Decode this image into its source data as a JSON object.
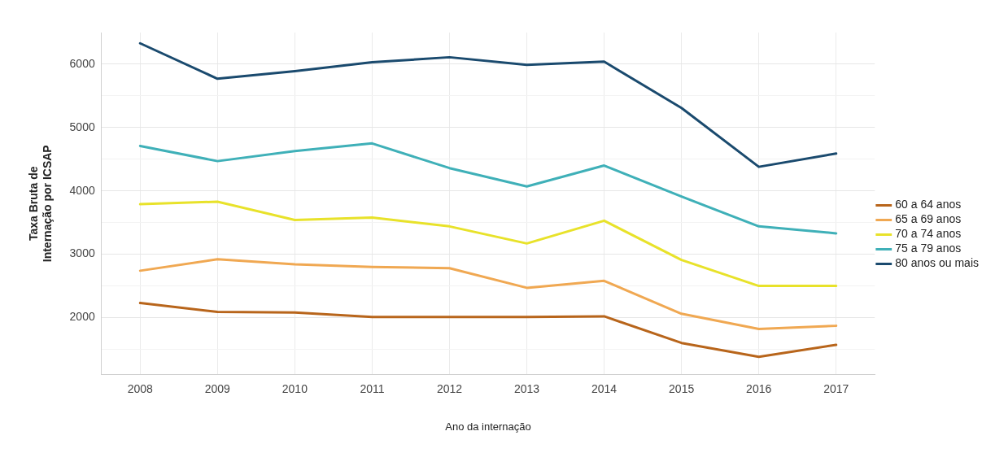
{
  "chart_data": {
    "type": "line",
    "xlabel": "Ano da internação",
    "ylabel": "Taxa Bruta de\nInternação por ICSAP",
    "categories": [
      "2008",
      "2009",
      "2010",
      "2011",
      "2012",
      "2013",
      "2014",
      "2015",
      "2016",
      "2017"
    ],
    "series": [
      {
        "name": "60 a 64 anos",
        "color": "#b8651b",
        "values": [
          2230,
          2090,
          2080,
          2010,
          2010,
          2010,
          2020,
          1600,
          1380,
          1570
        ]
      },
      {
        "name": "65 a 69 anos",
        "color": "#f0a852",
        "values": [
          2740,
          2920,
          2840,
          2800,
          2780,
          2470,
          2580,
          2060,
          1820,
          1870
        ]
      },
      {
        "name": "70 a 74 anos",
        "color": "#e8e22a",
        "values": [
          3790,
          3830,
          3540,
          3580,
          3440,
          3170,
          3530,
          2910,
          2500,
          2500
        ]
      },
      {
        "name": "75 a 79 anos",
        "color": "#3fb0b8",
        "values": [
          4710,
          4470,
          4630,
          4750,
          4360,
          4070,
          4400,
          3910,
          3440,
          3330
        ]
      },
      {
        "name": "80 anos ou mais",
        "color": "#1a4a6e",
        "values": [
          6330,
          5770,
          5890,
          6030,
          6110,
          5990,
          6040,
          5310,
          4380,
          4590
        ]
      }
    ],
    "ylim": [
      1100,
      6500
    ],
    "yticks": [
      {
        "value": 1500,
        "label": null
      },
      2000,
      {
        "value": 2500,
        "label": null
      },
      3000,
      {
        "value": 3500,
        "label": null
      },
      4000,
      {
        "value": 4500,
        "label": null
      },
      5000,
      {
        "value": 5500,
        "label": null
      },
      6000
    ],
    "grid": true,
    "legend": "right",
    "marker": "none",
    "line_style": "solid"
  }
}
